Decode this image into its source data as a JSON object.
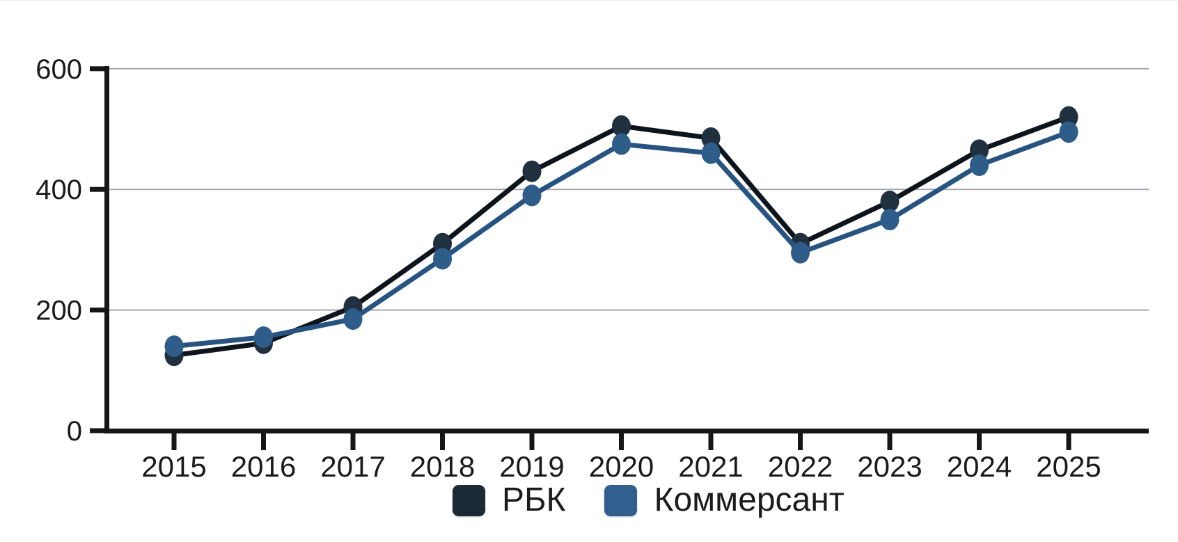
{
  "chart_data": {
    "type": "line",
    "title": "",
    "x_labels": [
      "2015",
      "2016",
      "2017",
      "2018",
      "2019",
      "2020",
      "2021",
      "2022",
      "2023",
      "2024",
      "2025"
    ],
    "y_ticks": [
      0,
      200,
      400,
      600
    ],
    "ylim": [
      0,
      600
    ],
    "grid": "horizontal",
    "legend_position": "bottom-center",
    "series": [
      {
        "name": "РБК",
        "line_color": "#0e141b",
        "marker_color": "#20303f",
        "swatch_color": "#1c2a38",
        "values": [
          125,
          145,
          205,
          310,
          430,
          505,
          485,
          310,
          380,
          465,
          520
        ]
      },
      {
        "name": "Коммерсант",
        "line_color": "#265380",
        "marker_color": "#2f5d8a",
        "swatch_color": "#31608f",
        "values": [
          140,
          155,
          185,
          285,
          390,
          475,
          460,
          295,
          350,
          440,
          495
        ]
      }
    ],
    "colors": {
      "background": "#ffffff",
      "gridline": "#a6a6b2",
      "axis": "#161616",
      "tick_label": "#1a1a1a"
    }
  }
}
